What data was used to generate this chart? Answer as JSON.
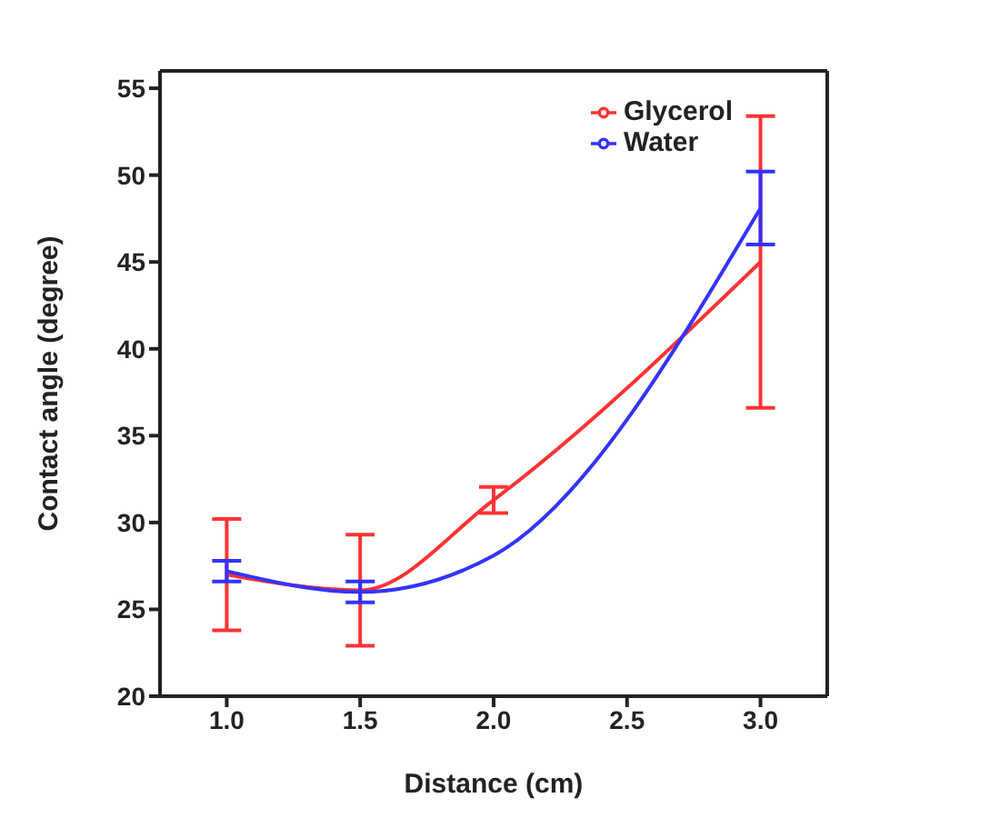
{
  "chart_data": {
    "type": "line",
    "xlabel": "Distance (cm)",
    "ylabel": "Contact angle (degree)",
    "x": [
      1.0,
      1.5,
      2.0,
      3.0
    ],
    "series": [
      {
        "name": "Glycerol",
        "color": "#ff3333",
        "values": [
          27.0,
          26.1,
          31.3,
          45.0
        ],
        "errors": [
          3.2,
          3.2,
          0.75,
          8.4
        ]
      },
      {
        "name": "Water",
        "color": "#3333ff",
        "values": [
          27.2,
          26.0,
          28.1,
          48.1
        ],
        "errors": [
          0.6,
          0.6,
          null,
          2.1
        ]
      }
    ],
    "xlim": [
      0.75,
      3.25
    ],
    "xticks": [
      {
        "value": 1,
        "label": "1.0"
      },
      {
        "value": 1.5,
        "label": "1.5"
      },
      {
        "value": 2,
        "label": "2.0"
      },
      {
        "value": 2.5,
        "label": "2.5"
      },
      {
        "value": 3,
        "label": "3.0"
      }
    ],
    "ylim": [
      20,
      56
    ],
    "yticks": [
      20,
      25,
      30,
      35,
      40,
      45,
      50,
      55
    ],
    "grid": false,
    "legend": "top right",
    "marker": "none",
    "line_style": "solid"
  }
}
